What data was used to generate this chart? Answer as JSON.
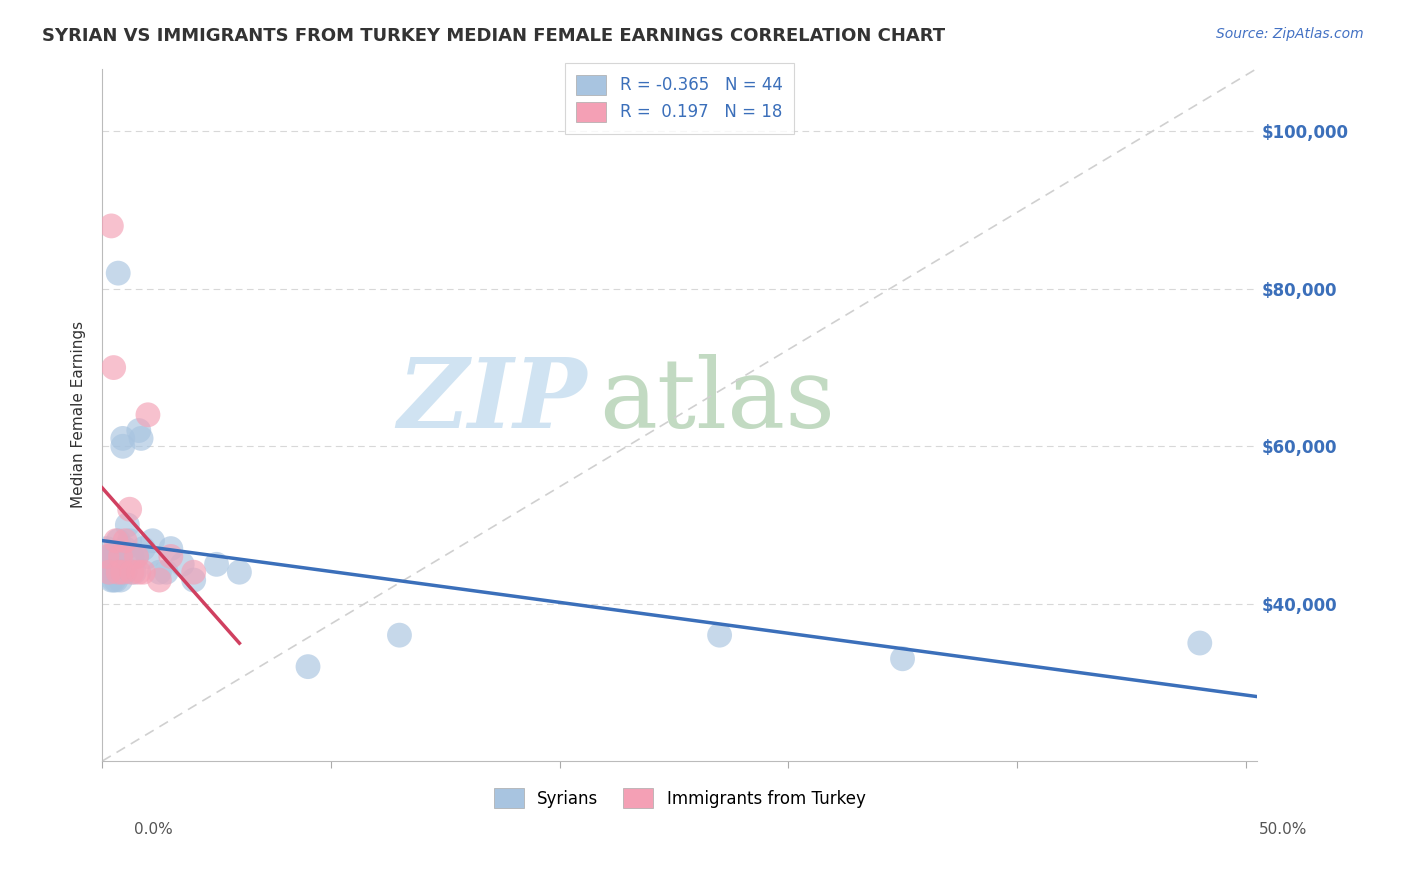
{
  "title": "SYRIAN VS IMMIGRANTS FROM TURKEY MEDIAN FEMALE EARNINGS CORRELATION CHART",
  "source": "Source: ZipAtlas.com",
  "ylabel": "Median Female Earnings",
  "r_syrian": -0.365,
  "n_syrian": 44,
  "r_turkey": 0.197,
  "n_turkey": 18,
  "syrian_color": "#a8c4e0",
  "turkey_color": "#f4a0b5",
  "syrian_line_color": "#3b6fba",
  "turkey_line_color": "#d04060",
  "ytick_labels": [
    "$40,000",
    "$60,000",
    "$80,000",
    "$100,000"
  ],
  "ytick_values": [
    40000,
    60000,
    80000,
    100000
  ],
  "ylim": [
    20000,
    108000
  ],
  "xlim": [
    0.0,
    0.505
  ],
  "syrians_x": [
    0.002,
    0.003,
    0.003,
    0.004,
    0.004,
    0.004,
    0.005,
    0.005,
    0.005,
    0.005,
    0.006,
    0.006,
    0.006,
    0.007,
    0.007,
    0.008,
    0.008,
    0.008,
    0.009,
    0.009,
    0.01,
    0.01,
    0.011,
    0.012,
    0.013,
    0.014,
    0.015,
    0.016,
    0.017,
    0.018,
    0.02,
    0.022,
    0.025,
    0.028,
    0.03,
    0.035,
    0.04,
    0.05,
    0.06,
    0.09,
    0.13,
    0.27,
    0.35,
    0.48
  ],
  "syrians_y": [
    47000,
    44000,
    46000,
    45000,
    43000,
    46000,
    44000,
    46000,
    43000,
    45000,
    44000,
    46000,
    43000,
    82000,
    48000,
    44000,
    46000,
    43000,
    61000,
    60000,
    47000,
    44000,
    50000,
    48000,
    46000,
    44000,
    46000,
    62000,
    61000,
    47000,
    46000,
    48000,
    44000,
    44000,
    47000,
    45000,
    43000,
    45000,
    44000,
    32000,
    36000,
    36000,
    33000,
    35000
  ],
  "turkey_x": [
    0.002,
    0.003,
    0.004,
    0.005,
    0.006,
    0.007,
    0.008,
    0.009,
    0.01,
    0.012,
    0.013,
    0.015,
    0.016,
    0.018,
    0.02,
    0.025,
    0.03,
    0.04
  ],
  "turkey_y": [
    46000,
    44000,
    88000,
    70000,
    48000,
    44000,
    46000,
    44000,
    48000,
    52000,
    44000,
    46000,
    44000,
    44000,
    64000,
    43000,
    46000,
    44000
  ]
}
